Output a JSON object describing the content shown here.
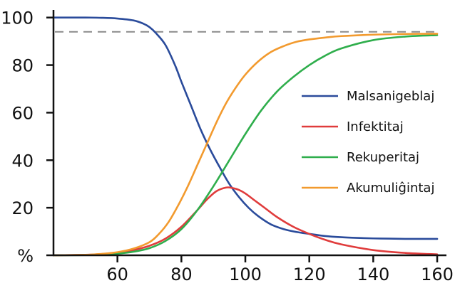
{
  "chart_data": {
    "type": "line",
    "xlabel": "",
    "ylabel": "%",
    "xlim": [
      40,
      162
    ],
    "ylim": [
      0,
      102
    ],
    "x_ticks": [
      60,
      80,
      100,
      120,
      140,
      160
    ],
    "y_ticks": [
      20,
      40,
      60,
      80,
      100
    ],
    "grid": false,
    "legend_position": "right",
    "reference_line": {
      "y": 94,
      "style": "dashed",
      "color": "#8a8a8a"
    },
    "series": [
      {
        "name": "Malsanigeblaj",
        "color": "#2a4b9b",
        "x": [
          40,
          45,
          50,
          55,
          60,
          65,
          68,
          70,
          72,
          75,
          78,
          80,
          83,
          86,
          89,
          92,
          95,
          98,
          101,
          104,
          108,
          112,
          116,
          120,
          125,
          130,
          135,
          140,
          145,
          150,
          155,
          160
        ],
        "y": [
          100,
          100,
          100,
          99.9,
          99.6,
          98.8,
          97.5,
          96,
          93.5,
          88.5,
          80,
          73,
          63,
          53,
          44.5,
          37,
          30,
          24.5,
          20,
          16.5,
          13,
          11,
          9.8,
          9,
          8.1,
          7.6,
          7.3,
          7.1,
          7,
          6.9,
          6.9,
          6.9
        ]
      },
      {
        "name": "Infektitaj",
        "color": "#e03c3c",
        "x": [
          40,
          50,
          55,
          60,
          65,
          70,
          75,
          80,
          85,
          88,
          91,
          94,
          96,
          98,
          100,
          103,
          106,
          110,
          115,
          120,
          125,
          130,
          140,
          150,
          160
        ],
        "y": [
          0,
          0.2,
          0.5,
          1.2,
          2.2,
          4,
          7,
          12,
          19,
          23.5,
          27,
          28.5,
          28.3,
          27.5,
          26,
          23,
          20,
          16,
          12,
          9,
          6.5,
          4.6,
          2.2,
          1,
          0.4
        ]
      },
      {
        "name": "Rekuperitaj",
        "color": "#2fae4c",
        "x": [
          40,
          50,
          55,
          60,
          65,
          70,
          75,
          80,
          85,
          90,
          95,
          100,
          105,
          110,
          115,
          120,
          125,
          130,
          140,
          150,
          160
        ],
        "y": [
          0,
          0.1,
          0.3,
          0.7,
          1.5,
          3,
          6,
          11,
          19,
          29,
          40,
          51,
          61,
          69,
          75,
          80,
          84,
          87,
          90.5,
          92,
          92.6
        ]
      },
      {
        "name": "Akumuliĝintaj",
        "color": "#f29a2e",
        "x": [
          40,
          50,
          55,
          60,
          65,
          70,
          73,
          76,
          79,
          82,
          85,
          88,
          91,
          94,
          97,
          100,
          104,
          108,
          112,
          116,
          120,
          125,
          130,
          140,
          150,
          160
        ],
        "y": [
          0,
          0.2,
          0.6,
          1.3,
          2.8,
          5.5,
          9,
          14,
          21,
          29,
          38,
          47,
          56,
          64,
          70.5,
          76,
          81.5,
          85.5,
          88,
          89.8,
          90.8,
          91.6,
          92.2,
          92.8,
          93.1,
          93.2
        ]
      }
    ]
  }
}
